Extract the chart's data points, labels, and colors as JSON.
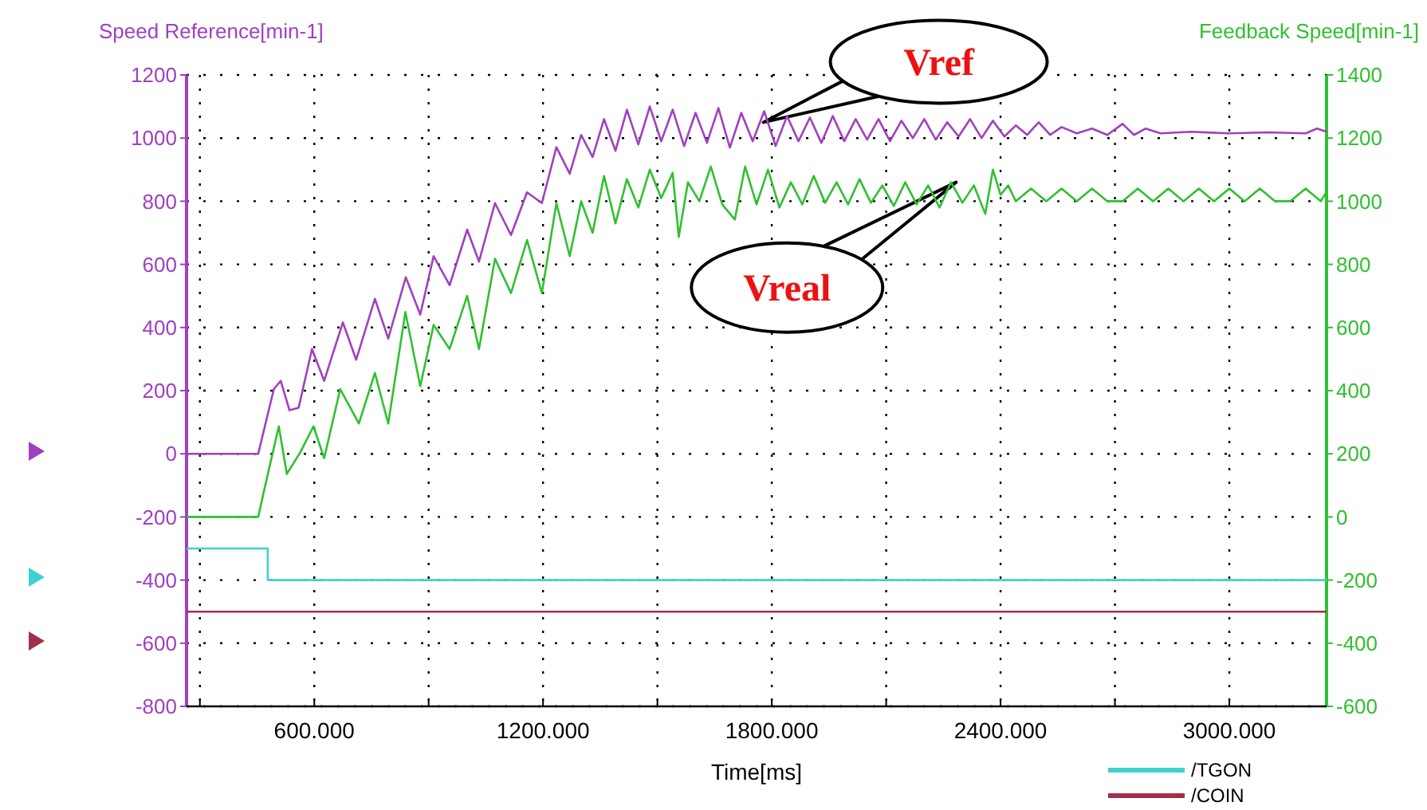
{
  "chart_data": {
    "type": "line",
    "ylabel": "Speed Reference[min-1]",
    "y2label": "Feedback Speed[min-1]",
    "xlabel": "Time[ms]",
    "xlim": [
      265,
      3255
    ],
    "xticks": [
      {
        "value": 300,
        "label": null
      },
      {
        "value": 600,
        "label": "600.000"
      },
      {
        "value": 900,
        "label": null
      },
      {
        "value": 1200,
        "label": "1200.000"
      },
      {
        "value": 1500,
        "label": null
      },
      {
        "value": 1800,
        "label": "1800.000"
      },
      {
        "value": 2100,
        "label": null
      },
      {
        "value": 2400,
        "label": "2400.000"
      },
      {
        "value": 2700,
        "label": null
      },
      {
        "value": 3000,
        "label": "3000.000"
      }
    ],
    "ylim": [
      -800,
      1200
    ],
    "yticks": [
      -800,
      -600,
      -400,
      -200,
      0,
      200,
      400,
      600,
      800,
      1000,
      1200
    ],
    "y2lim": [
      -600,
      1400
    ],
    "y2ticks": [
      -600,
      -400,
      -200,
      0,
      200,
      400,
      600,
      800,
      1000,
      1200,
      1400
    ],
    "grid": true,
    "legend": "bottom right",
    "series": [
      {
        "color": "#a040c0",
        "axis": "y",
        "x": [
          265,
          453,
          494,
          512,
          535,
          559,
          594,
          626,
          675,
          710,
          759,
          794,
          840,
          878,
          913,
          955,
          1001,
          1032,
          1074,
          1116,
          1158,
          1197,
          1235,
          1270,
          1300,
          1330,
          1360,
          1390,
          1420,
          1450,
          1480,
          1510,
          1540,
          1570,
          1600,
          1630,
          1660,
          1690,
          1720,
          1750,
          1780,
          1810,
          1840,
          1870,
          1900,
          1930,
          1960,
          1990,
          2020,
          2050,
          2080,
          2110,
          2140,
          2170,
          2200,
          2230,
          2260,
          2290,
          2320,
          2350,
          2380,
          2410,
          2440,
          2470,
          2500,
          2530,
          2560,
          2600,
          2640,
          2680,
          2720,
          2750,
          2780,
          2820,
          2900,
          3000,
          3100,
          3200,
          3230,
          3255
        ],
        "values": [
          0,
          0,
          205,
          231,
          138,
          146,
          332,
          231,
          416,
          298,
          491,
          365,
          559,
          441,
          626,
          534,
          710,
          609,
          794,
          693,
          828,
          794,
          971,
          887,
          1010,
          940,
          1060,
          960,
          1090,
          980,
          1100,
          990,
          1090,
          975,
          1080,
          985,
          1095,
          970,
          1080,
          990,
          1085,
          975,
          1070,
          990,
          1065,
          985,
          1070,
          990,
          1060,
          995,
          1060,
          990,
          1055,
          1000,
          1060,
          995,
          1050,
          1005,
          1060,
          1000,
          1055,
          1005,
          1040,
          1010,
          1050,
          1010,
          1035,
          1015,
          1030,
          1010,
          1045,
          1010,
          1030,
          1015,
          1020,
          1015,
          1018,
          1015,
          1030,
          1020
        ]
      },
      {
        "color": "#30c030",
        "axis": "y2",
        "x": [
          265,
          453,
          472,
          507,
          528,
          563,
          598,
          626,
          668,
          717,
          759,
          794,
          839,
          878,
          913,
          955,
          1001,
          1032,
          1074,
          1116,
          1158,
          1197,
          1235,
          1270,
          1300,
          1330,
          1360,
          1390,
          1420,
          1450,
          1480,
          1510,
          1540,
          1556,
          1580,
          1610,
          1640,
          1670,
          1703,
          1730,
          1760,
          1790,
          1820,
          1850,
          1880,
          1910,
          1940,
          1970,
          2000,
          2030,
          2060,
          2090,
          2120,
          2150,
          2180,
          2210,
          2240,
          2270,
          2300,
          2330,
          2360,
          2380,
          2400,
          2420,
          2440,
          2480,
          2520,
          2560,
          2600,
          2640,
          2680,
          2720,
          2760,
          2800,
          2840,
          2880,
          2920,
          2960,
          3000,
          3040,
          3080,
          3120,
          3160,
          3200,
          3240,
          3255
        ],
        "values": [
          0,
          0,
          103,
          287,
          136,
          204,
          287,
          186,
          405,
          296,
          456,
          296,
          649,
          414,
          608,
          532,
          700,
          532,
          818,
          709,
          877,
          709,
          994,
          826,
          1000,
          900,
          1080,
          930,
          1070,
          980,
          1100,
          1010,
          1090,
          887,
          1060,
          1000,
          1110,
          990,
          942,
          1110,
          990,
          1100,
          980,
          1060,
          990,
          1080,
          995,
          1060,
          990,
          1070,
          995,
          1050,
          985,
          1060,
          990,
          1050,
          980,
          1060,
          995,
          1050,
          960,
          1100,
          1020,
          1050,
          1000,
          1040,
          1000,
          1040,
          1000,
          1040,
          1000,
          1000,
          1040,
          1000,
          1040,
          1000,
          1040,
          1000,
          1040,
          1000,
          1040,
          1000,
          1000,
          1040,
          1000,
          1030
        ]
      },
      {
        "name": "/TGON",
        "color": "#40d0d0",
        "axis": "y",
        "x": [
          265,
          478,
          478,
          3255
        ],
        "values": [
          -300,
          -300,
          -400,
          -400
        ]
      },
      {
        "name": "/COIN",
        "color": "#a0304a",
        "axis": "y",
        "x": [
          265,
          3255
        ],
        "values": [
          -500,
          -500
        ]
      }
    ],
    "annotations": [
      "Vref",
      "Vreal"
    ]
  }
}
